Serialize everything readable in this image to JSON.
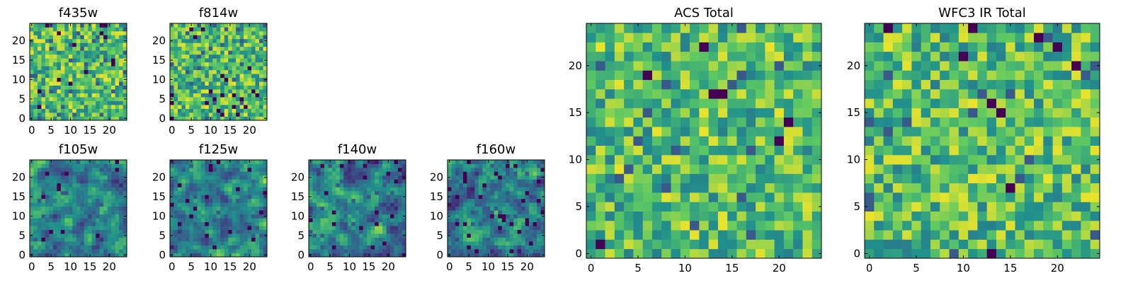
{
  "figure": {
    "colormap": "viridis",
    "colormap_stops": [
      "#440154",
      "#3b528b",
      "#21918c",
      "#5ec962",
      "#fde725"
    ]
  },
  "chart_data": [
    {
      "type": "heatmap",
      "title": "f435w",
      "grid": [
        25,
        25
      ],
      "xlim": [
        -0.5,
        24.5
      ],
      "ylim": [
        -0.5,
        24.5
      ],
      "xticks": [
        "0",
        "5",
        "10",
        "15",
        "20"
      ],
      "yticks": [
        "0",
        "5",
        "10",
        "15",
        "20"
      ],
      "seed": 11,
      "smooth": 0,
      "dark_fraction": 0.03
    },
    {
      "type": "heatmap",
      "title": "f814w",
      "grid": [
        25,
        25
      ],
      "xlim": [
        -0.5,
        24.5
      ],
      "ylim": [
        -0.5,
        24.5
      ],
      "xticks": [
        "0",
        "5",
        "10",
        "15",
        "20"
      ],
      "yticks": [
        "0",
        "5",
        "10",
        "15",
        "20"
      ],
      "seed": 23,
      "smooth": 0,
      "dark_fraction": 0.03
    },
    {
      "type": "heatmap",
      "title": "f105w",
      "grid": [
        25,
        25
      ],
      "xlim": [
        -0.5,
        24.5
      ],
      "ylim": [
        -0.5,
        24.5
      ],
      "xticks": [
        "0",
        "5",
        "10",
        "15",
        "20"
      ],
      "yticks": [
        "0",
        "5",
        "10",
        "15",
        "20"
      ],
      "seed": 37,
      "smooth": 1,
      "dark_fraction": 0.02
    },
    {
      "type": "heatmap",
      "title": "f125w",
      "grid": [
        25,
        25
      ],
      "xlim": [
        -0.5,
        24.5
      ],
      "ylim": [
        -0.5,
        24.5
      ],
      "xticks": [
        "0",
        "5",
        "10",
        "15",
        "20"
      ],
      "yticks": [
        "0",
        "5",
        "10",
        "15",
        "20"
      ],
      "seed": 41,
      "smooth": 1,
      "dark_fraction": 0.03
    },
    {
      "type": "heatmap",
      "title": "f140w",
      "grid": [
        25,
        25
      ],
      "xlim": [
        -0.5,
        24.5
      ],
      "ylim": [
        -0.5,
        24.5
      ],
      "xticks": [
        "0",
        "5",
        "10",
        "15",
        "20"
      ],
      "yticks": [
        "0",
        "5",
        "10",
        "15",
        "20"
      ],
      "seed": 53,
      "smooth": 1,
      "dark_fraction": 0.04
    },
    {
      "type": "heatmap",
      "title": "f160w",
      "grid": [
        25,
        25
      ],
      "xlim": [
        -0.5,
        24.5
      ],
      "ylim": [
        -0.5,
        24.5
      ],
      "xticks": [
        "0",
        "5",
        "10",
        "15",
        "20"
      ],
      "yticks": [
        "0",
        "5",
        "10",
        "15",
        "20"
      ],
      "seed": 67,
      "smooth": 1,
      "dark_fraction": 0.04
    },
    {
      "type": "heatmap",
      "title": "ACS Total",
      "grid": [
        25,
        25
      ],
      "xlim": [
        -0.5,
        24.5
      ],
      "ylim": [
        -0.5,
        24.5
      ],
      "xticks": [
        "0",
        "5",
        "10",
        "15",
        "20"
      ],
      "yticks": [
        "0",
        "5",
        "10",
        "15",
        "20"
      ],
      "seed": 79,
      "smooth": 0,
      "dark_fraction": 0.02
    },
    {
      "type": "heatmap",
      "title": "WFC3 IR Total",
      "grid": [
        25,
        25
      ],
      "xlim": [
        -0.5,
        24.5
      ],
      "ylim": [
        -0.5,
        24.5
      ],
      "xticks": [
        "0",
        "5",
        "10",
        "15",
        "20"
      ],
      "yticks": [
        "0",
        "5",
        "10",
        "15",
        "20"
      ],
      "seed": 97,
      "smooth": 0,
      "dark_fraction": 0.02
    }
  ]
}
